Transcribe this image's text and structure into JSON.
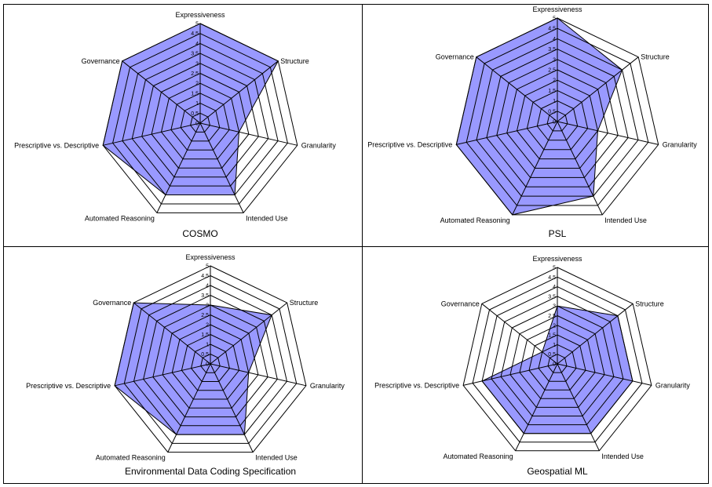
{
  "colors": {
    "fill": "#9999ff",
    "stroke": "#000000",
    "background": "#ffffff"
  },
  "chart_data": [
    {
      "type": "radar",
      "title": "COSMO",
      "axes": [
        "Expressiveness",
        "Structure",
        "Granularity",
        "Intended Use",
        "Automated Reasoning",
        "Prescriptive vs. Descriptive",
        "Governance"
      ],
      "values": [
        5,
        5,
        2,
        4,
        4,
        5,
        5
      ],
      "rlim": [
        0,
        5
      ],
      "ticks": [
        "0",
        "0.5",
        "1",
        "1.5",
        "2",
        "2.5",
        "3",
        "3.5",
        "4",
        "4.5",
        "5"
      ],
      "grid": true,
      "legend": "none"
    },
    {
      "type": "radar",
      "title": "PSL",
      "axes": [
        "Expressiveness",
        "Structure",
        "Granularity",
        "Intended Use",
        "Automated Reasoning",
        "Prescriptive vs. Descriptive",
        "Governance"
      ],
      "values": [
        5,
        4,
        2,
        4,
        5,
        5,
        5
      ],
      "rlim": [
        0,
        5
      ],
      "ticks": [
        "0",
        "0.5",
        "1",
        "1.5",
        "2",
        "2.5",
        "3",
        "3.5",
        "4",
        "4.5",
        "5"
      ],
      "grid": true,
      "legend": "none"
    },
    {
      "type": "radar",
      "title": "Environmental Data Coding Specification",
      "axes": [
        "Expressiveness",
        "Structure",
        "Granularity",
        "Intended Use",
        "Automated Reasoning",
        "Prescriptive vs. Descriptive",
        "Governance"
      ],
      "values": [
        3,
        4,
        2,
        4,
        4,
        5,
        5
      ],
      "rlim": [
        0,
        5
      ],
      "ticks": [
        "0",
        "0.5",
        "1",
        "1.5",
        "2",
        "2.5",
        "3",
        "3.5",
        "4",
        "4.5",
        "5"
      ],
      "grid": true,
      "legend": "none"
    },
    {
      "type": "radar",
      "title": "Geospatial ML",
      "axes": [
        "Expressiveness",
        "Structure",
        "Granularity",
        "Intended Use",
        "Automated Reasoning",
        "Prescriptive vs. Descriptive",
        "Governance"
      ],
      "values": [
        3,
        4,
        4,
        4,
        4,
        4,
        1
      ],
      "rlim": [
        0,
        5
      ],
      "ticks": [
        "0",
        "0.5",
        "1",
        "1.5",
        "2",
        "2.5",
        "3",
        "3.5",
        "4",
        "4.5",
        "5"
      ],
      "grid": true,
      "legend": "none"
    }
  ]
}
